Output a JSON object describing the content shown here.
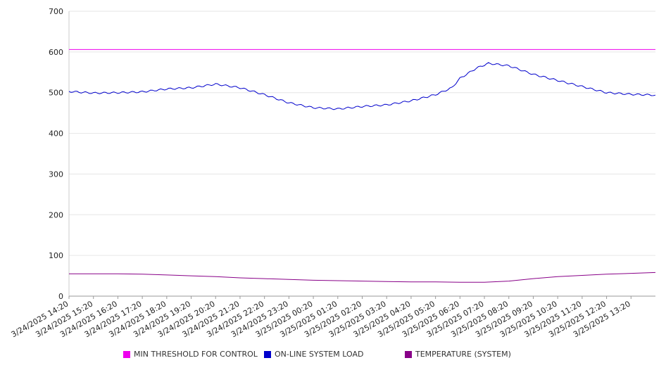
{
  "chart_data": {
    "type": "line",
    "ylim": [
      0,
      700
    ],
    "yticks": [
      0,
      100,
      200,
      300,
      400,
      500,
      600,
      700
    ],
    "grid": true,
    "legend_position": "bottom",
    "x_tick_labels": [
      "3/24/2025 14:20",
      "3/24/2025 15:20",
      "3/24/2025 16:20",
      "3/24/2025 17:20",
      "3/24/2025 18:20",
      "3/24/2025 19:20",
      "3/24/2025 20:20",
      "3/24/2025 21:20",
      "3/24/2025 22:20",
      "3/24/2025 23:20",
      "3/25/2025 00:20",
      "3/25/2025 01:20",
      "3/25/2025 02:20",
      "3/25/2025 03:20",
      "3/25/2025 04:20",
      "3/25/2025 05:20",
      "3/25/2025 06:20",
      "3/25/2025 07:20",
      "3/25/2025 08:20",
      "3/25/2025 09:20",
      "3/25/2025 10:20",
      "3/25/2025 11:20",
      "3/25/2025 12:20",
      "3/25/2025 13:20"
    ],
    "x_end": "3/25/2025 14:20",
    "series": [
      {
        "name": "MIN THRESHOLD FOR CONTROL",
        "color": "#ee00ee",
        "points": [
          [
            "3/24/2025 14:20",
            606
          ],
          [
            "3/25/2025 14:20",
            606
          ]
        ]
      },
      {
        "name": "ON-LINE SYSTEM LOAD",
        "color": "#0000cc",
        "points": [
          [
            "3/24/2025 14:20",
            503
          ],
          [
            "3/24/2025 15:20",
            499
          ],
          [
            "3/24/2025 16:20",
            500
          ],
          [
            "3/24/2025 17:20",
            502
          ],
          [
            "3/24/2025 18:20",
            509
          ],
          [
            "3/24/2025 19:20",
            512
          ],
          [
            "3/24/2025 20:20",
            521
          ],
          [
            "3/24/2025 21:00",
            515
          ],
          [
            "3/24/2025 21:20",
            512
          ],
          [
            "3/24/2025 22:20",
            495
          ],
          [
            "3/24/2025 23:20",
            475
          ],
          [
            "3/25/2025 00:20",
            463
          ],
          [
            "3/25/2025 01:20",
            460
          ],
          [
            "3/25/2025 02:20",
            466
          ],
          [
            "3/25/2025 03:20",
            470
          ],
          [
            "3/25/2025 04:20",
            480
          ],
          [
            "3/25/2025 05:00",
            490
          ],
          [
            "3/25/2025 05:20",
            495
          ],
          [
            "3/25/2025 06:00",
            512
          ],
          [
            "3/25/2025 06:20",
            535
          ],
          [
            "3/25/2025 07:00",
            560
          ],
          [
            "3/25/2025 07:30",
            572
          ],
          [
            "3/25/2025 08:20",
            566
          ],
          [
            "3/25/2025 09:20",
            545
          ],
          [
            "3/25/2025 10:20",
            530
          ],
          [
            "3/25/2025 11:20",
            515
          ],
          [
            "3/25/2025 12:20",
            500
          ],
          [
            "3/25/2025 13:20",
            496
          ],
          [
            "3/25/2025 14:20",
            494
          ]
        ]
      },
      {
        "name": "TEMPERATURE (SYSTEM)",
        "color": "#880088",
        "points": [
          [
            "3/24/2025 14:20",
            55
          ],
          [
            "3/24/2025 15:20",
            55
          ],
          [
            "3/24/2025 16:20",
            55
          ],
          [
            "3/24/2025 17:20",
            54
          ],
          [
            "3/24/2025 18:20",
            52
          ],
          [
            "3/24/2025 19:20",
            50
          ],
          [
            "3/24/2025 20:20",
            48
          ],
          [
            "3/24/2025 21:20",
            45
          ],
          [
            "3/24/2025 22:20",
            43
          ],
          [
            "3/24/2025 23:20",
            41
          ],
          [
            "3/25/2025 00:20",
            39
          ],
          [
            "3/25/2025 01:20",
            38
          ],
          [
            "3/25/2025 02:20",
            37
          ],
          [
            "3/25/2025 03:20",
            36
          ],
          [
            "3/25/2025 04:20",
            35
          ],
          [
            "3/25/2025 05:20",
            35
          ],
          [
            "3/25/2025 06:20",
            34
          ],
          [
            "3/25/2025 07:20",
            34
          ],
          [
            "3/25/2025 08:20",
            37
          ],
          [
            "3/25/2025 09:20",
            43
          ],
          [
            "3/25/2025 10:20",
            48
          ],
          [
            "3/25/2025 11:20",
            51
          ],
          [
            "3/25/2025 12:20",
            54
          ],
          [
            "3/25/2025 13:20",
            56
          ],
          [
            "3/25/2025 14:20",
            58
          ]
        ]
      }
    ]
  }
}
